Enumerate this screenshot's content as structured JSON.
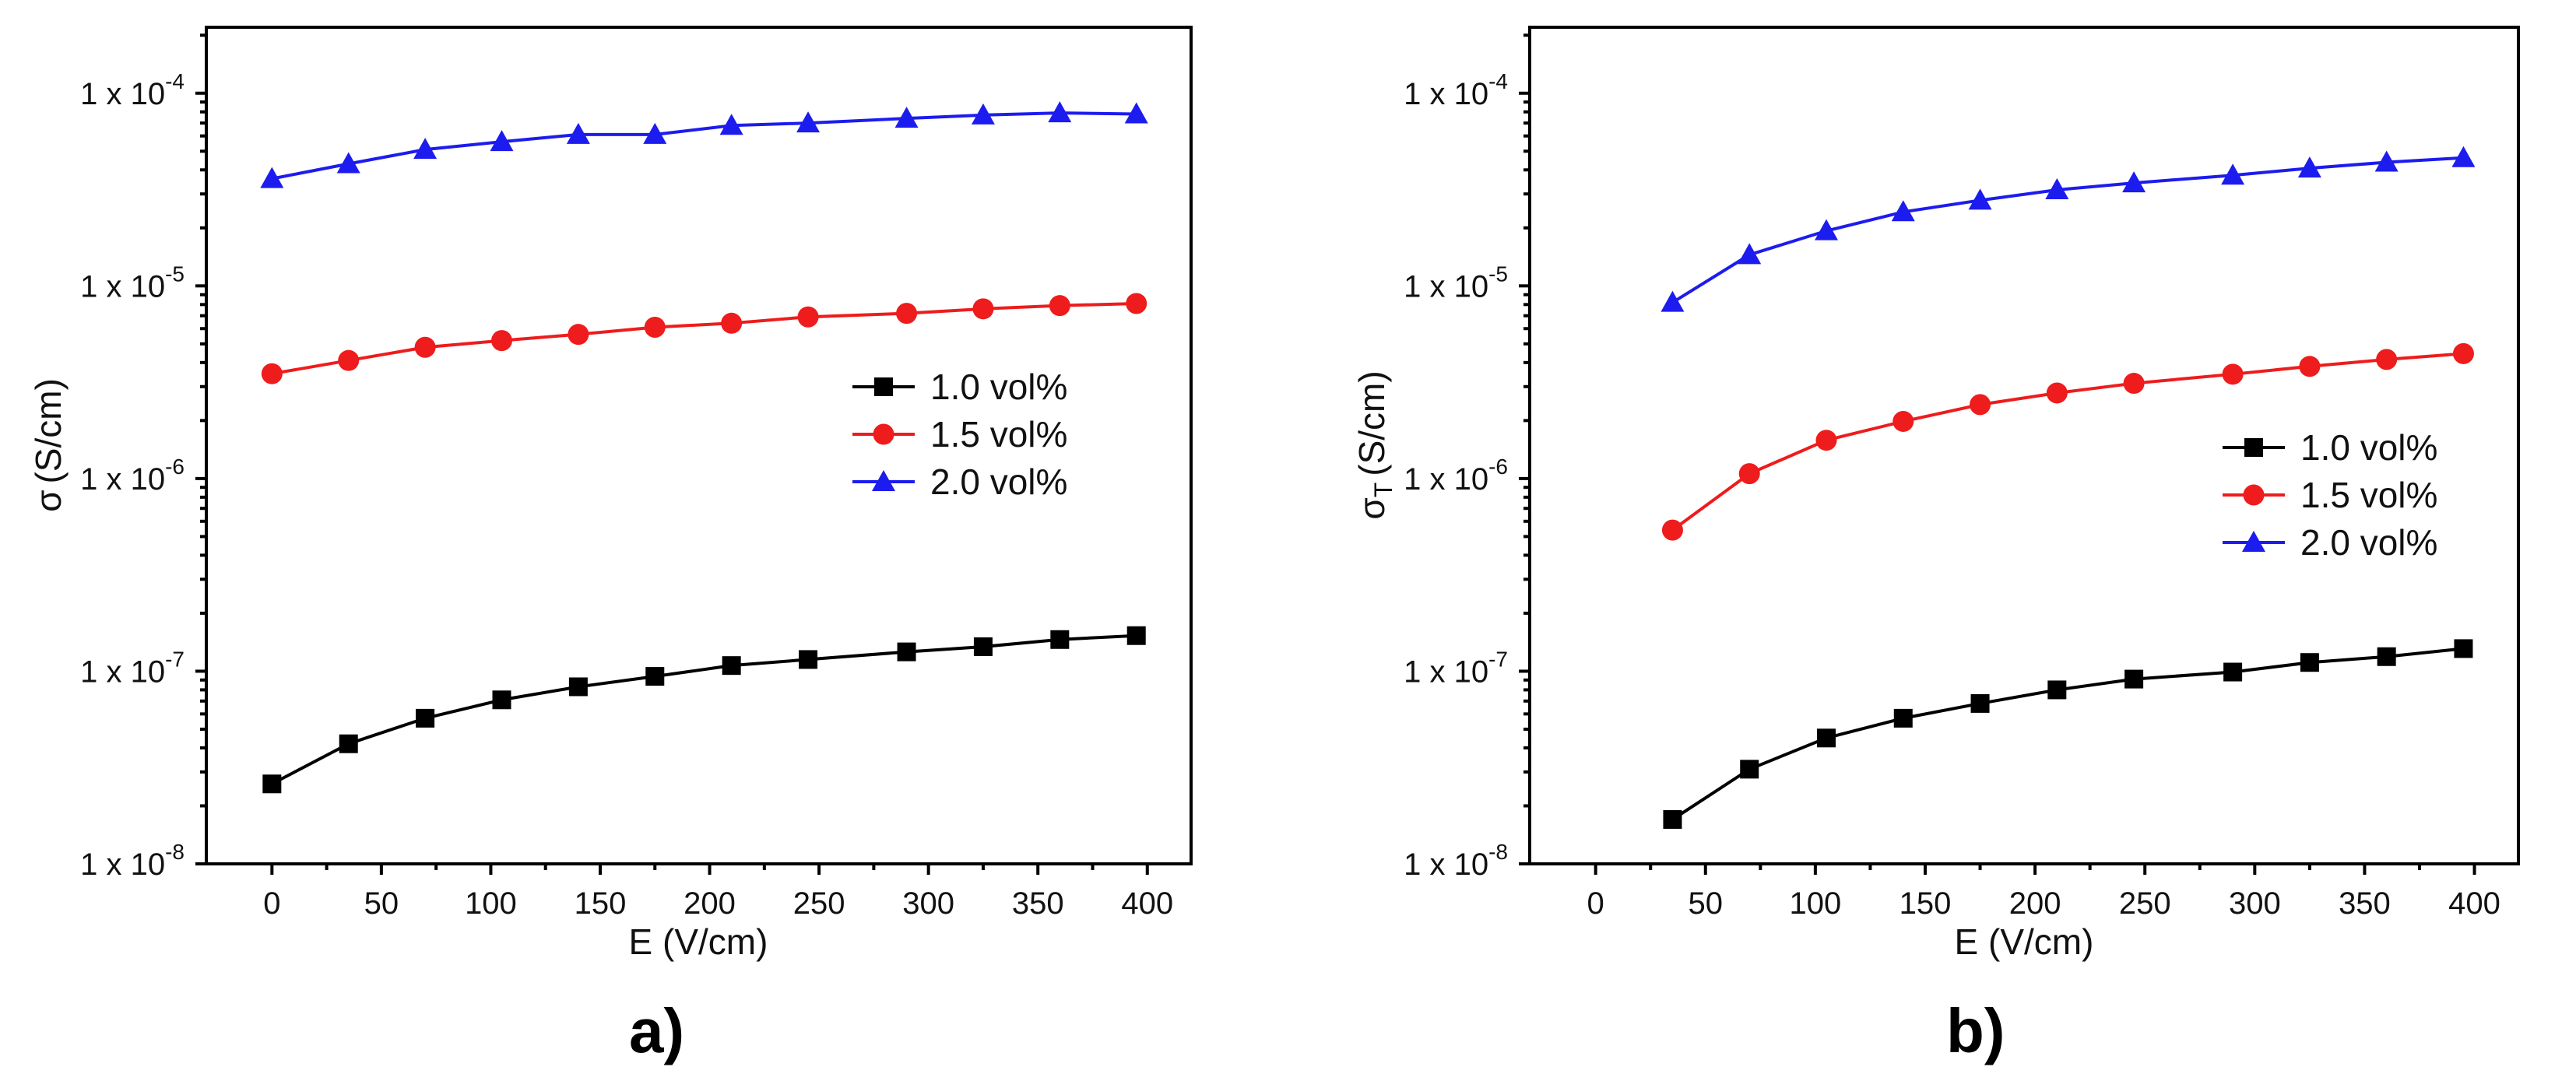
{
  "chart_data": [
    {
      "type": "line",
      "panel": "a",
      "panel_label": "a)",
      "title": "",
      "xlabel": "E (V/cm)",
      "ylabel": "σ (S/cm)",
      "ylabel_main": "σ",
      "ylabel_sub": "",
      "ylabel_unit": "(S/cm)",
      "yscale": "log",
      "xlim": [
        -30,
        420
      ],
      "ylim": [
        1e-08,
        0.00022
      ],
      "xticks": [
        0,
        50,
        100,
        150,
        200,
        250,
        300,
        350,
        400
      ],
      "yticks": [
        {
          "value": 1e-08,
          "base": "1 x 10",
          "exp": "-8"
        },
        {
          "value": 1e-07,
          "base": "1 x 10",
          "exp": "-7"
        },
        {
          "value": 1e-06,
          "base": "1 x 10",
          "exp": "-6"
        },
        {
          "value": 1e-05,
          "base": "1 x 10",
          "exp": "-5"
        },
        {
          "value": 0.0001,
          "base": "1 x 10",
          "exp": "-4"
        }
      ],
      "legend_position": "center-right",
      "series": [
        {
          "name": "1.0 vol%",
          "color": "#000000",
          "marker": "square",
          "x": [
            0,
            35,
            70,
            105,
            140,
            175,
            210,
            245,
            290,
            325,
            360,
            395
          ],
          "y": [
            2.6e-08,
            4.2e-08,
            5.7e-08,
            7.1e-08,
            8.3e-08,
            9.4e-08,
            1.07e-07,
            1.15e-07,
            1.26e-07,
            1.34e-07,
            1.46e-07,
            1.53e-07
          ]
        },
        {
          "name": "1.5 vol%",
          "color": "#ee1c1c",
          "marker": "circle",
          "x": [
            0,
            35,
            70,
            105,
            140,
            175,
            210,
            245,
            290,
            325,
            360,
            395
          ],
          "y": [
            3.5e-06,
            4.1e-06,
            4.8e-06,
            5.2e-06,
            5.6e-06,
            6.1e-06,
            6.4e-06,
            6.9e-06,
            7.2e-06,
            7.6e-06,
            7.9e-06,
            8.1e-06
          ]
        },
        {
          "name": "2.0 vol%",
          "color": "#1c1cee",
          "marker": "triangle",
          "x": [
            0,
            35,
            70,
            105,
            140,
            175,
            210,
            245,
            290,
            325,
            360,
            395
          ],
          "y": [
            3.6e-05,
            4.3e-05,
            5.1e-05,
            5.6e-05,
            6.1e-05,
            6.1e-05,
            6.8e-05,
            7e-05,
            7.4e-05,
            7.7e-05,
            7.9e-05,
            7.8e-05
          ]
        }
      ]
    },
    {
      "type": "line",
      "panel": "b",
      "panel_label": "b)",
      "title": "",
      "xlabel": "E (V/cm)",
      "ylabel": "σT (S/cm)",
      "ylabel_main": "σ",
      "ylabel_sub": "T",
      "ylabel_unit": "(S/cm)",
      "yscale": "log",
      "xlim": [
        -30,
        420
      ],
      "ylim": [
        1e-08,
        0.00022
      ],
      "xticks": [
        0,
        50,
        100,
        150,
        200,
        250,
        300,
        350,
        400
      ],
      "yticks": [
        {
          "value": 1e-08,
          "base": "1 x 10",
          "exp": "-8"
        },
        {
          "value": 1e-07,
          "base": "1 x 10",
          "exp": "-7"
        },
        {
          "value": 1e-06,
          "base": "1 x 10",
          "exp": "-6"
        },
        {
          "value": 1e-05,
          "base": "1 x 10",
          "exp": "-5"
        },
        {
          "value": 0.0001,
          "base": "1 x 10",
          "exp": "-4"
        }
      ],
      "legend_position": "center-right",
      "series": [
        {
          "name": "1.0 vol%",
          "color": "#000000",
          "marker": "square",
          "x": [
            35,
            70,
            105,
            140,
            175,
            210,
            245,
            290,
            325,
            360,
            395
          ],
          "y": [
            1.7e-08,
            3.1e-08,
            4.5e-08,
            5.7e-08,
            6.8e-08,
            8e-08,
            9.1e-08,
            9.9e-08,
            1.11e-07,
            1.19e-07,
            1.31e-07
          ]
        },
        {
          "name": "1.5 vol%",
          "color": "#ee1c1c",
          "marker": "circle",
          "x": [
            35,
            70,
            105,
            140,
            175,
            210,
            245,
            290,
            325,
            360,
            395
          ],
          "y": [
            5.4e-07,
            1.06e-06,
            1.58e-06,
            1.98e-06,
            2.42e-06,
            2.78e-06,
            3.12e-06,
            3.48e-06,
            3.82e-06,
            4.15e-06,
            4.45e-06
          ]
        },
        {
          "name": "2.0 vol%",
          "color": "#1c1cee",
          "marker": "triangle",
          "x": [
            35,
            70,
            105,
            140,
            175,
            210,
            245,
            290,
            325,
            360,
            395
          ],
          "y": [
            8.2e-06,
            1.45e-05,
            1.93e-05,
            2.42e-05,
            2.78e-05,
            3.15e-05,
            3.42e-05,
            3.75e-05,
            4.08e-05,
            4.38e-05,
            4.62e-05
          ]
        }
      ]
    }
  ]
}
